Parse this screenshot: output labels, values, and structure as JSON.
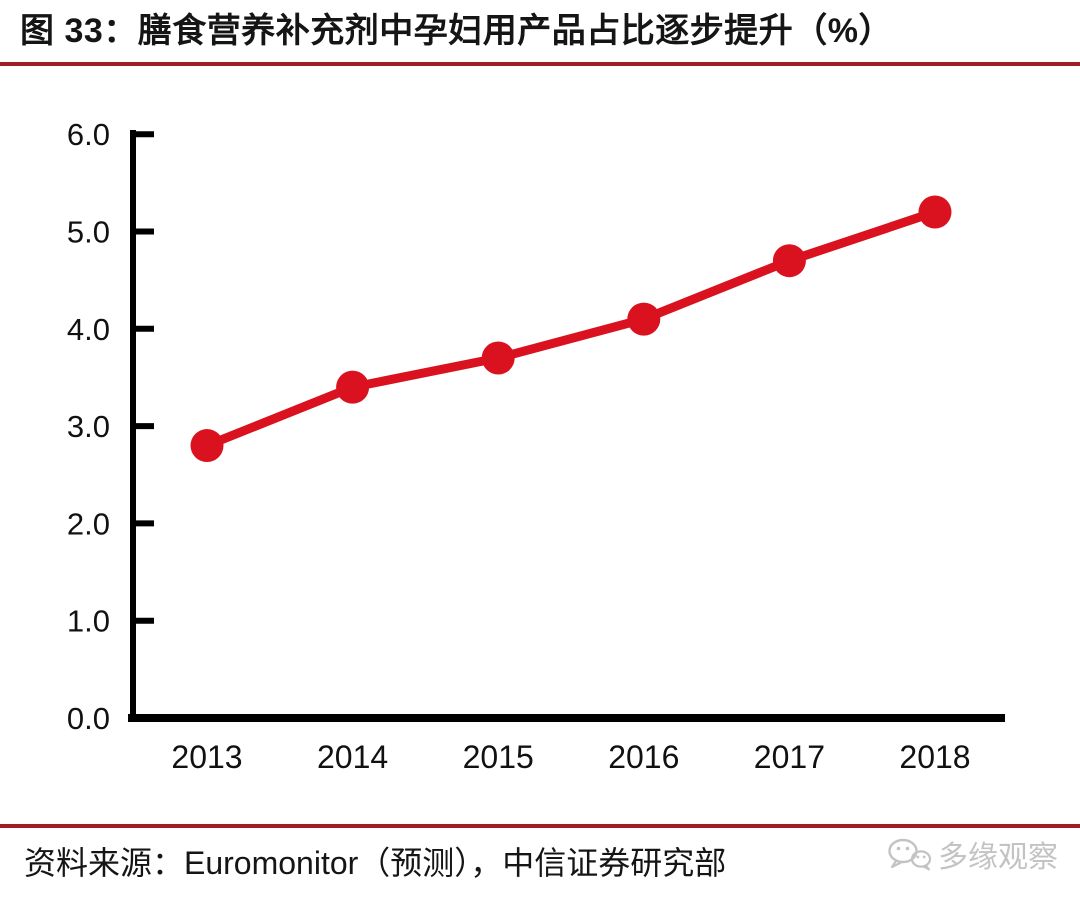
{
  "header": {
    "title": "图 33：膳食营养补充剂中孕妇用产品占比逐步提升（%）"
  },
  "chart_data": {
    "type": "line",
    "title": "膳食营养补充剂中孕妇用产品占比逐步提升",
    "unit": "%",
    "categories": [
      "2013",
      "2014",
      "2015",
      "2016",
      "2017",
      "2018"
    ],
    "series": [
      {
        "name": "孕妇用产品占比",
        "values": [
          2.8,
          3.4,
          3.7,
          4.1,
          4.7,
          5.2
        ]
      }
    ],
    "xlabel": "",
    "ylabel": "",
    "ylim": [
      0.0,
      6.0
    ],
    "ytick_step": 1.0,
    "ytick_labels": [
      "0.0",
      "1.0",
      "2.0",
      "3.0",
      "4.0",
      "5.0",
      "6.0"
    ],
    "grid": false,
    "legend": "none",
    "line_color": "#da121f",
    "marker": "circle",
    "axis_color": "#000000"
  },
  "footer": {
    "source": "资料来源：Euromonitor（预测），中信证券研究部",
    "watermark": "多缘观察"
  },
  "colors": {
    "accent_rule": "#a01e23",
    "line_red": "#da121f",
    "axis_black": "#000000",
    "watermark_gray": "#c3c3c3"
  }
}
